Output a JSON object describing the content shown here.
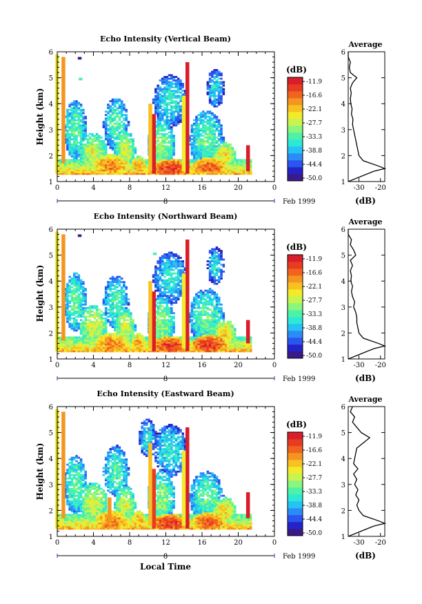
{
  "chart_data": {
    "type": "heatmap",
    "x_axis": {
      "label": "Local Time",
      "range": [
        0,
        24
      ],
      "ticks": [
        "0",
        "4",
        "8",
        "12",
        "16",
        "20",
        "0"
      ],
      "day_label": "8",
      "month_label": "Feb 1999"
    },
    "y_axis": {
      "label": "Height (km)",
      "range": [
        1,
        6
      ],
      "ticks": [
        "1",
        "2",
        "3",
        "4",
        "5",
        "6"
      ]
    },
    "colorbar": {
      "label": "(dB)",
      "ticks": [
        "-11.9",
        "-16.6",
        "-22.1",
        "-27.7",
        "-33.3",
        "-38.8",
        "-44.4",
        "-50.0"
      ],
      "range": [
        -50.0,
        -11.0
      ],
      "colors": [
        "#3a1a8a",
        "#2323c8",
        "#2a55ee",
        "#2b8cf6",
        "#25c3f3",
        "#2ee8d6",
        "#4cf2a6",
        "#8cf57d",
        "#c8f450",
        "#f2ea2a",
        "#f8c021",
        "#f59521",
        "#f0641f",
        "#e83b22",
        "#d81e2a"
      ]
    },
    "panels": [
      {
        "title": "Echo Intensity (Vertical Beam)",
        "profile_title": "Average",
        "profile_xlabel": "(dB)",
        "profile_xticks": [
          "-30",
          "-20"
        ],
        "profile_xrange": [
          -35,
          -18
        ],
        "profile_height_km": [
          1.0,
          1.2,
          1.4,
          1.5,
          1.6,
          1.8,
          2.0,
          2.2,
          2.4,
          2.6,
          2.8,
          3.0,
          3.2,
          3.4,
          3.6,
          3.8,
          4.0,
          4.2,
          4.4,
          4.6,
          4.8,
          5.0,
          5.2,
          5.4,
          5.6,
          5.8,
          6.0
        ],
        "profile_db": [
          -35,
          -29,
          -23,
          -18,
          -21,
          -28,
          -30,
          -30.5,
          -31,
          -31.5,
          -32,
          -32.5,
          -33,
          -32.8,
          -33.5,
          -33.2,
          -33.8,
          -34,
          -33.6,
          -34,
          -33,
          -31,
          -34,
          -34.5,
          -34,
          -35,
          -35
        ],
        "cells": [
          [
            0.0,
            1.3,
            5.9,
            -25
          ],
          [
            0.7,
            1.7,
            5.8,
            -20
          ],
          [
            14.4,
            1.3,
            5.6,
            -12
          ],
          [
            14.0,
            1.4,
            4.3,
            -26
          ],
          [
            10.7,
            1.3,
            3.6,
            -13
          ],
          [
            10.3,
            1.4,
            4.0,
            -24
          ],
          [
            21.1,
            1.4,
            2.4,
            -13
          ],
          [
            2.5,
            5.7,
            5.8,
            -48
          ],
          [
            2.6,
            4.9,
            5.0,
            -33
          ]
        ],
        "blobs": [
          [
            6.0,
            1.6,
            3.2,
            0.35,
            -19
          ],
          [
            12.5,
            1.5,
            3.5,
            0.3,
            -15
          ],
          [
            16.8,
            1.55,
            3.2,
            0.3,
            -17
          ],
          [
            9.0,
            1.6,
            1.5,
            0.3,
            -21
          ],
          [
            18.5,
            2.0,
            2.0,
            0.4,
            -24
          ],
          [
            7.5,
            2.2,
            1.8,
            0.6,
            -27
          ],
          [
            4.0,
            2.1,
            2.5,
            0.6,
            -27
          ],
          [
            11.5,
            2.4,
            2.4,
            0.8,
            -30
          ],
          [
            16.5,
            2.6,
            3.0,
            0.9,
            -32
          ],
          [
            2.0,
            3.0,
            2.0,
            0.9,
            -32
          ],
          [
            6.5,
            3.2,
            2.2,
            0.8,
            -33
          ],
          [
            12.5,
            4.1,
            3.0,
            0.8,
            -35
          ],
          [
            17.5,
            4.6,
            1.5,
            0.6,
            -36
          ]
        ]
      },
      {
        "title": "Echo Intensity (Northward Beam)",
        "profile_title": "Average",
        "profile_xlabel": "(dB)",
        "profile_xticks": [
          "-30",
          "-20"
        ],
        "profile_xrange": [
          -35,
          -18
        ],
        "profile_height_km": [
          1.0,
          1.2,
          1.4,
          1.5,
          1.6,
          1.8,
          2.0,
          2.2,
          2.4,
          2.6,
          2.8,
          3.0,
          3.2,
          3.4,
          3.6,
          3.8,
          4.0,
          4.2,
          4.4,
          4.6,
          4.8,
          5.0,
          5.2,
          5.4,
          5.6,
          5.8,
          6.0
        ],
        "profile_db": [
          -35,
          -29,
          -23,
          -18,
          -21,
          -28,
          -30,
          -30.5,
          -31,
          -31,
          -31.5,
          -32.5,
          -32,
          -33,
          -33.5,
          -33,
          -33.8,
          -33.5,
          -34,
          -33,
          -34,
          -31.5,
          -32.5,
          -34,
          -33.5,
          -35,
          -35
        ],
        "cells": [
          [
            0.0,
            1.3,
            5.9,
            -25
          ],
          [
            0.7,
            1.7,
            5.8,
            -20
          ],
          [
            14.4,
            1.3,
            5.6,
            -12
          ],
          [
            14.0,
            1.4,
            4.3,
            -26
          ],
          [
            10.7,
            1.3,
            3.6,
            -13
          ],
          [
            10.3,
            1.4,
            4.0,
            -24
          ],
          [
            21.1,
            1.6,
            2.5,
            -13
          ],
          [
            2.5,
            5.7,
            5.8,
            -48
          ],
          [
            10.8,
            5.0,
            5.1,
            -34
          ]
        ],
        "blobs": [
          [
            6.0,
            1.55,
            3.2,
            0.35,
            -19
          ],
          [
            12.5,
            1.5,
            3.5,
            0.3,
            -15
          ],
          [
            16.8,
            1.55,
            3.2,
            0.3,
            -15
          ],
          [
            9.0,
            1.6,
            1.5,
            0.3,
            -21
          ],
          [
            18.5,
            2.0,
            2.0,
            0.4,
            -24
          ],
          [
            7.5,
            2.2,
            1.8,
            0.6,
            -27
          ],
          [
            4.0,
            2.3,
            2.5,
            0.6,
            -27
          ],
          [
            11.5,
            2.4,
            2.4,
            0.8,
            -30
          ],
          [
            16.5,
            2.6,
            3.0,
            0.9,
            -32
          ],
          [
            2.0,
            3.2,
            2.0,
            0.9,
            -32
          ],
          [
            6.5,
            3.2,
            2.2,
            0.8,
            -33
          ],
          [
            12.5,
            4.1,
            3.0,
            0.8,
            -35
          ],
          [
            17.5,
            4.6,
            1.5,
            0.6,
            -36
          ]
        ]
      },
      {
        "title": "Echo Intensity (Eastward Beam)",
        "profile_title": "Average",
        "profile_xlabel": "(dB)",
        "profile_xticks": [
          "-30",
          "-20"
        ],
        "profile_xrange": [
          -35,
          -18
        ],
        "profile_height_km": [
          1.0,
          1.2,
          1.4,
          1.5,
          1.6,
          1.8,
          2.0,
          2.2,
          2.4,
          2.6,
          2.8,
          3.0,
          3.2,
          3.4,
          3.6,
          3.8,
          4.0,
          4.2,
          4.4,
          4.6,
          4.8,
          5.0,
          5.2,
          5.4,
          5.6,
          5.8,
          6.0
        ],
        "profile_db": [
          -35,
          -29,
          -23,
          -18,
          -21,
          -28,
          -30,
          -31,
          -30,
          -31.5,
          -30.5,
          -32,
          -31,
          -32.5,
          -30.5,
          -32.5,
          -32,
          -31.5,
          -31,
          -28,
          -25,
          -29,
          -31,
          -33,
          -32,
          -34,
          -33
        ],
        "cells": [
          [
            0.0,
            1.3,
            5.9,
            -25
          ],
          [
            0.7,
            1.7,
            5.8,
            -20
          ],
          [
            14.4,
            1.3,
            5.2,
            -12
          ],
          [
            14.0,
            1.4,
            4.3,
            -26
          ],
          [
            10.7,
            1.3,
            3.6,
            -14
          ],
          [
            10.3,
            1.4,
            4.6,
            -24
          ],
          [
            21.1,
            1.7,
            2.7,
            -13
          ],
          [
            5.8,
            1.5,
            2.5,
            -20
          ]
        ],
        "blobs": [
          [
            6.0,
            1.55,
            3.2,
            0.35,
            -19
          ],
          [
            12.5,
            1.5,
            3.5,
            0.3,
            -15
          ],
          [
            16.8,
            1.55,
            3.2,
            0.3,
            -17
          ],
          [
            9.0,
            1.6,
            1.5,
            0.3,
            -21
          ],
          [
            18.5,
            2.0,
            2.0,
            0.4,
            -24
          ],
          [
            7.5,
            2.2,
            1.8,
            0.6,
            -27
          ],
          [
            4.0,
            2.3,
            2.5,
            0.6,
            -27
          ],
          [
            11.5,
            2.5,
            2.4,
            0.8,
            -30
          ],
          [
            16.5,
            2.5,
            3.0,
            0.8,
            -32
          ],
          [
            2.0,
            3.0,
            2.0,
            0.9,
            -32
          ],
          [
            6.5,
            3.5,
            2.2,
            0.8,
            -33
          ],
          [
            12.5,
            4.3,
            3.0,
            0.8,
            -35
          ],
          [
            10.0,
            4.8,
            1.5,
            0.6,
            -36
          ]
        ]
      }
    ]
  }
}
